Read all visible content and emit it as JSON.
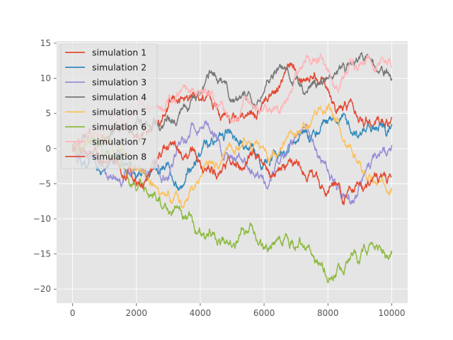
{
  "chart_data": {
    "type": "line",
    "title": "",
    "xlabel": "",
    "ylabel": "",
    "xlim": [
      -500,
      10500
    ],
    "ylim": [
      -22,
      15.3
    ],
    "xticks": [
      0,
      2000,
      4000,
      6000,
      8000,
      10000
    ],
    "xtick_labels": [
      "0",
      "2000",
      "4000",
      "6000",
      "8000",
      "10000"
    ],
    "yticks": [
      15,
      10,
      5,
      0,
      -5,
      -10,
      -15,
      -20
    ],
    "ytick_labels": [
      "15",
      "10",
      "5",
      "0",
      "−5",
      "−10",
      "−15",
      "−20"
    ],
    "grid": true,
    "legend_position": "upper-left",
    "series": [
      {
        "name": "simulation 1",
        "color": "#E24A33",
        "x": [
          0,
          500,
          1000,
          1500,
          2000,
          2500,
          3000,
          3500,
          4000,
          4500,
          5000,
          5500,
          6000,
          6500,
          7000,
          7500,
          8000,
          8500,
          9000,
          9500,
          10000
        ],
        "y": [
          0,
          2,
          1,
          3,
          1.5,
          3,
          6,
          7,
          7,
          6,
          4.5,
          5,
          7,
          9,
          11,
          10,
          8.5,
          6,
          4.5,
          4,
          4.5
        ]
      },
      {
        "name": "simulation 2",
        "color": "#348ABD",
        "x": [
          0,
          500,
          1000,
          1500,
          2000,
          2500,
          3000,
          3500,
          4000,
          4500,
          5000,
          5500,
          6000,
          6500,
          7000,
          7500,
          8000,
          8500,
          9000,
          9500,
          10000
        ],
        "y": [
          0,
          -2,
          -3,
          -1,
          -4,
          -3,
          -2,
          -5,
          -1,
          1,
          2,
          0,
          -2,
          -1,
          1,
          2,
          4,
          5,
          2,
          3,
          3.5
        ]
      },
      {
        "name": "simulation 3",
        "color": "#988ED5",
        "x": [
          0,
          500,
          1000,
          1500,
          2000,
          2500,
          3000,
          3500,
          4000,
          4500,
          5000,
          5500,
          6000,
          6500,
          7000,
          7500,
          8000,
          8500,
          9000,
          9500,
          10000
        ],
        "y": [
          0,
          -1.5,
          -3,
          -5,
          -3,
          -2,
          -4,
          1,
          3,
          2,
          -1,
          -3,
          -5,
          -2,
          2,
          1,
          -3,
          -7,
          -5,
          -1,
          0.5
        ]
      },
      {
        "name": "simulation 4",
        "color": "#777777",
        "x": [
          0,
          500,
          1000,
          1500,
          2000,
          2500,
          3000,
          3500,
          4000,
          4500,
          5000,
          5500,
          6000,
          6500,
          7000,
          7500,
          8000,
          8500,
          9000,
          9500,
          10000
        ],
        "y": [
          0,
          2,
          1.5,
          3,
          4,
          3,
          4,
          6,
          8,
          10,
          7,
          8,
          8,
          12,
          10,
          9,
          10,
          12,
          13,
          11,
          10
        ]
      },
      {
        "name": "simulation 5",
        "color": "#FBC15E",
        "x": [
          0,
          500,
          1000,
          1500,
          2000,
          2500,
          3000,
          3500,
          4000,
          4500,
          5000,
          5500,
          6000,
          6500,
          7000,
          7500,
          8000,
          8500,
          9000,
          9500,
          10000
        ],
        "y": [
          0,
          1,
          2,
          0,
          -3,
          -5,
          -6,
          -8,
          -4,
          -2,
          0,
          1,
          0,
          0,
          2,
          4,
          6,
          1,
          -2,
          -5,
          -6
        ]
      },
      {
        "name": "simulation 6",
        "color": "#8EBA42",
        "x": [
          0,
          500,
          1000,
          1500,
          2000,
          2500,
          3000,
          3500,
          4000,
          4500,
          5000,
          5500,
          6000,
          6500,
          7000,
          7500,
          8000,
          8500,
          9000,
          9500,
          10000
        ],
        "y": [
          0,
          1,
          -1,
          -2,
          -6,
          -7,
          -9,
          -10,
          -12,
          -13,
          -14,
          -12,
          -14,
          -13,
          -14,
          -15,
          -19,
          -18,
          -16,
          -14,
          -15
        ]
      },
      {
        "name": "simulation 7",
        "color": "#FFB5B8",
        "x": [
          0,
          500,
          1000,
          1500,
          2000,
          2500,
          3000,
          3500,
          4000,
          4500,
          5000,
          5500,
          6000,
          6500,
          7000,
          7500,
          8000,
          8500,
          9000,
          9500,
          10000
        ],
        "y": [
          0,
          2,
          3,
          4,
          5,
          6,
          7,
          9,
          8,
          6,
          4,
          7,
          6,
          5,
          11,
          12,
          11,
          10,
          12,
          11,
          11.5
        ]
      },
      {
        "name": "simulation 8",
        "color": "#E24A33",
        "x": [
          0,
          500,
          1000,
          1500,
          2000,
          2500,
          3000,
          3500,
          4000,
          4500,
          5000,
          5500,
          6000,
          6500,
          7000,
          7500,
          8000,
          8500,
          9000,
          9500,
          10000
        ],
        "y": [
          0,
          -1,
          -2,
          -3,
          -5,
          -3,
          0,
          -1,
          -2,
          -4,
          -2,
          -1,
          -2,
          -3,
          -2,
          -3,
          -6,
          -8,
          -5,
          -4,
          -4
        ]
      }
    ]
  },
  "colors": {
    "axes_background": "#E5E5E5",
    "grid": "#FFFFFF",
    "tick_label": "#555555",
    "legend_background": "#E5E5E5",
    "legend_border": "#CCCCCC"
  }
}
